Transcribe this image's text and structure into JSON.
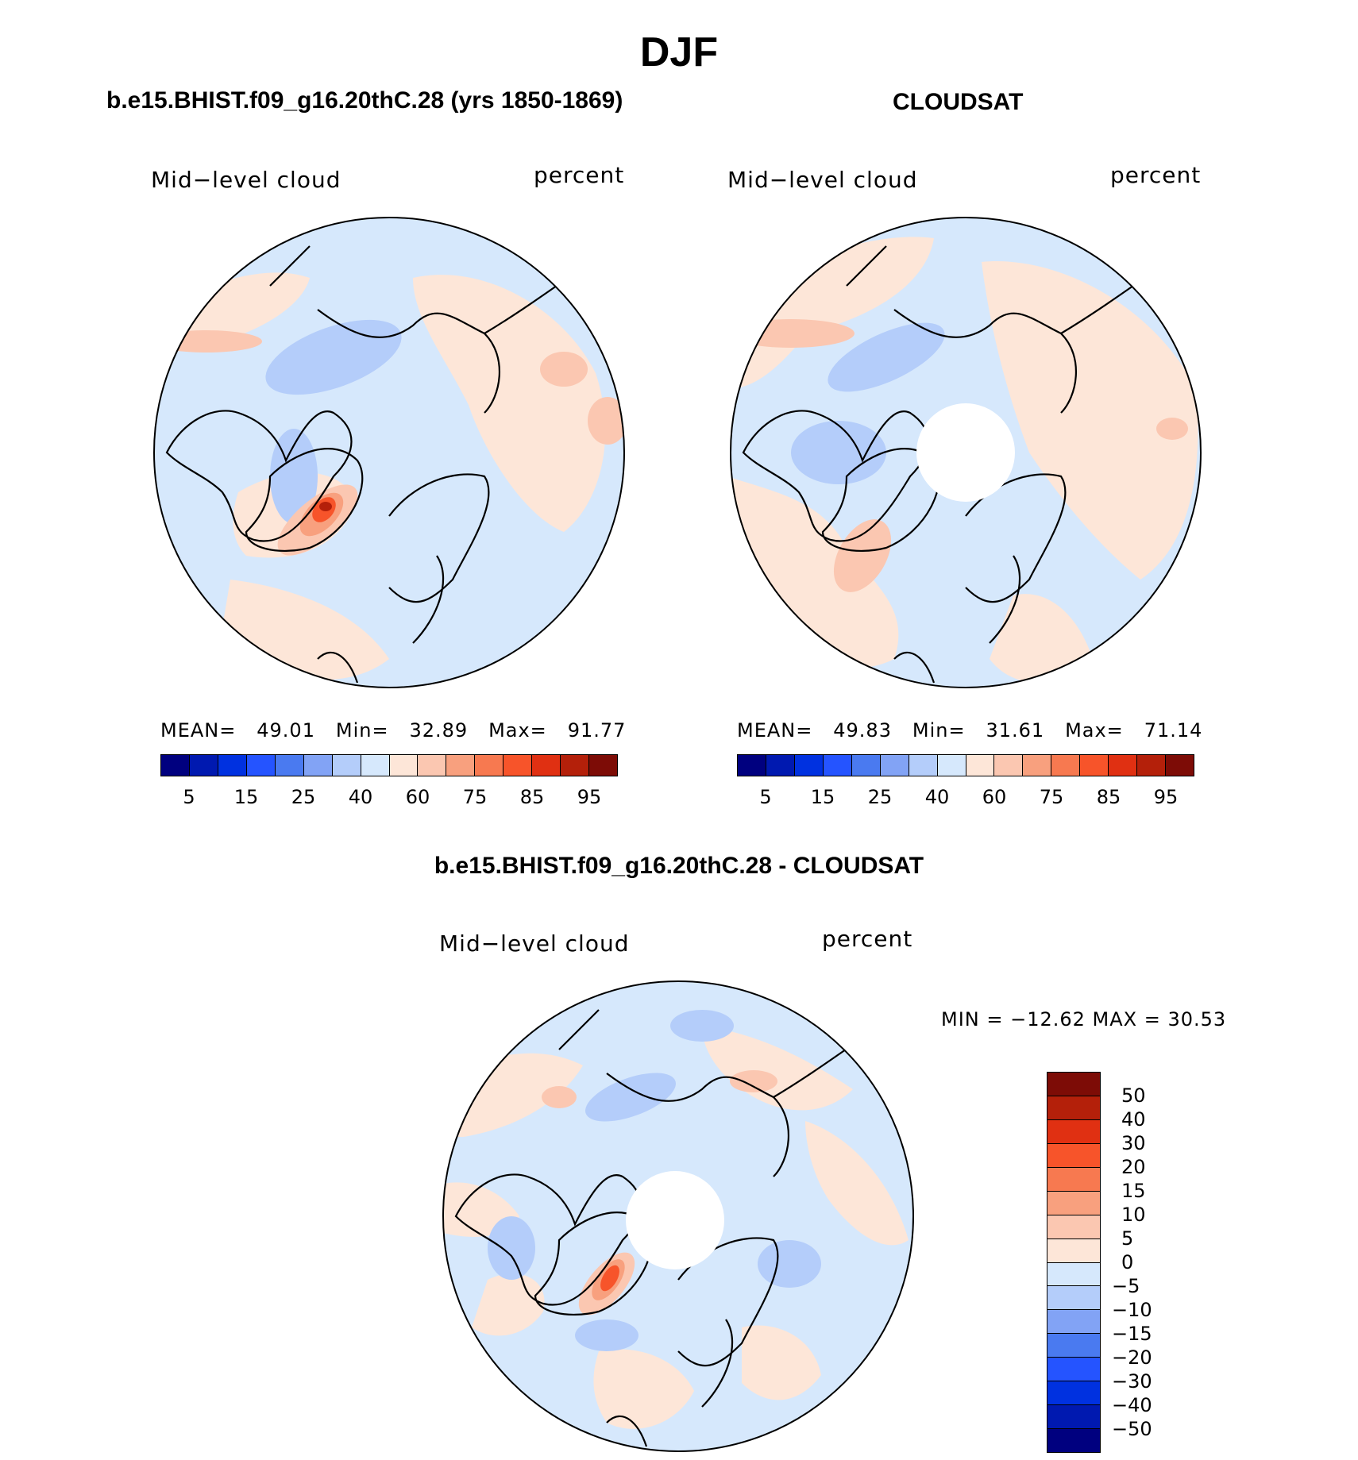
{
  "title": "DJF",
  "panels": [
    {
      "id": "model",
      "title": "b.e15.BHIST.f09_g16.20thC.28 (yrs 1850-1869)",
      "left_label": "Mid−level cloud",
      "right_label": "percent",
      "stats": {
        "mean_label": "MEAN=",
        "mean": "49.01",
        "min_label": "Min=",
        "min": "32.89",
        "max_label": "Max=",
        "max": "91.77"
      },
      "has_pole_hole": false
    },
    {
      "id": "obs",
      "title": "CLOUDSAT",
      "left_label": "Mid−level cloud",
      "right_label": "percent",
      "stats": {
        "mean_label": "MEAN=",
        "mean": "49.83",
        "min_label": "Min=",
        "min": "31.61",
        "max_label": "Max=",
        "max": "71.14"
      },
      "has_pole_hole": true
    },
    {
      "id": "diff",
      "title": "b.e15.BHIST.f09_g16.20thC.28 - CLOUDSAT",
      "left_label": "Mid−level cloud",
      "right_label": "percent",
      "minmax_text": "MIN = −12.62 MAX =   30.53",
      "has_pole_hole": true
    }
  ],
  "colorbar_abs": {
    "colors": [
      "#00007f",
      "#0019b0",
      "#0031e0",
      "#2554ff",
      "#4a7af0",
      "#82a3f5",
      "#b4cdfa",
      "#d6e8fc",
      "#fde6d8",
      "#fbc7b1",
      "#f8a07e",
      "#f77950",
      "#f7542a",
      "#e03012",
      "#b4200a",
      "#7d0c06"
    ],
    "tick_labels": [
      "5",
      "15",
      "25",
      "40",
      "60",
      "75",
      "85",
      "95"
    ]
  },
  "colorbar_diff": {
    "colors": [
      "#7d0c06",
      "#b4200a",
      "#e03012",
      "#f7542a",
      "#f77950",
      "#f8a07e",
      "#fbc7b1",
      "#fde6d8",
      "#d6e8fc",
      "#b4cdfa",
      "#82a3f5",
      "#4a7af0",
      "#2554ff",
      "#0031e0",
      "#0019b0",
      "#00007f"
    ],
    "tick_labels": [
      "50",
      "40",
      "30",
      "20",
      "15",
      "10",
      "5",
      "0",
      "−5",
      "−10",
      "−15",
      "−20",
      "−30",
      "−40",
      "−50"
    ]
  }
}
